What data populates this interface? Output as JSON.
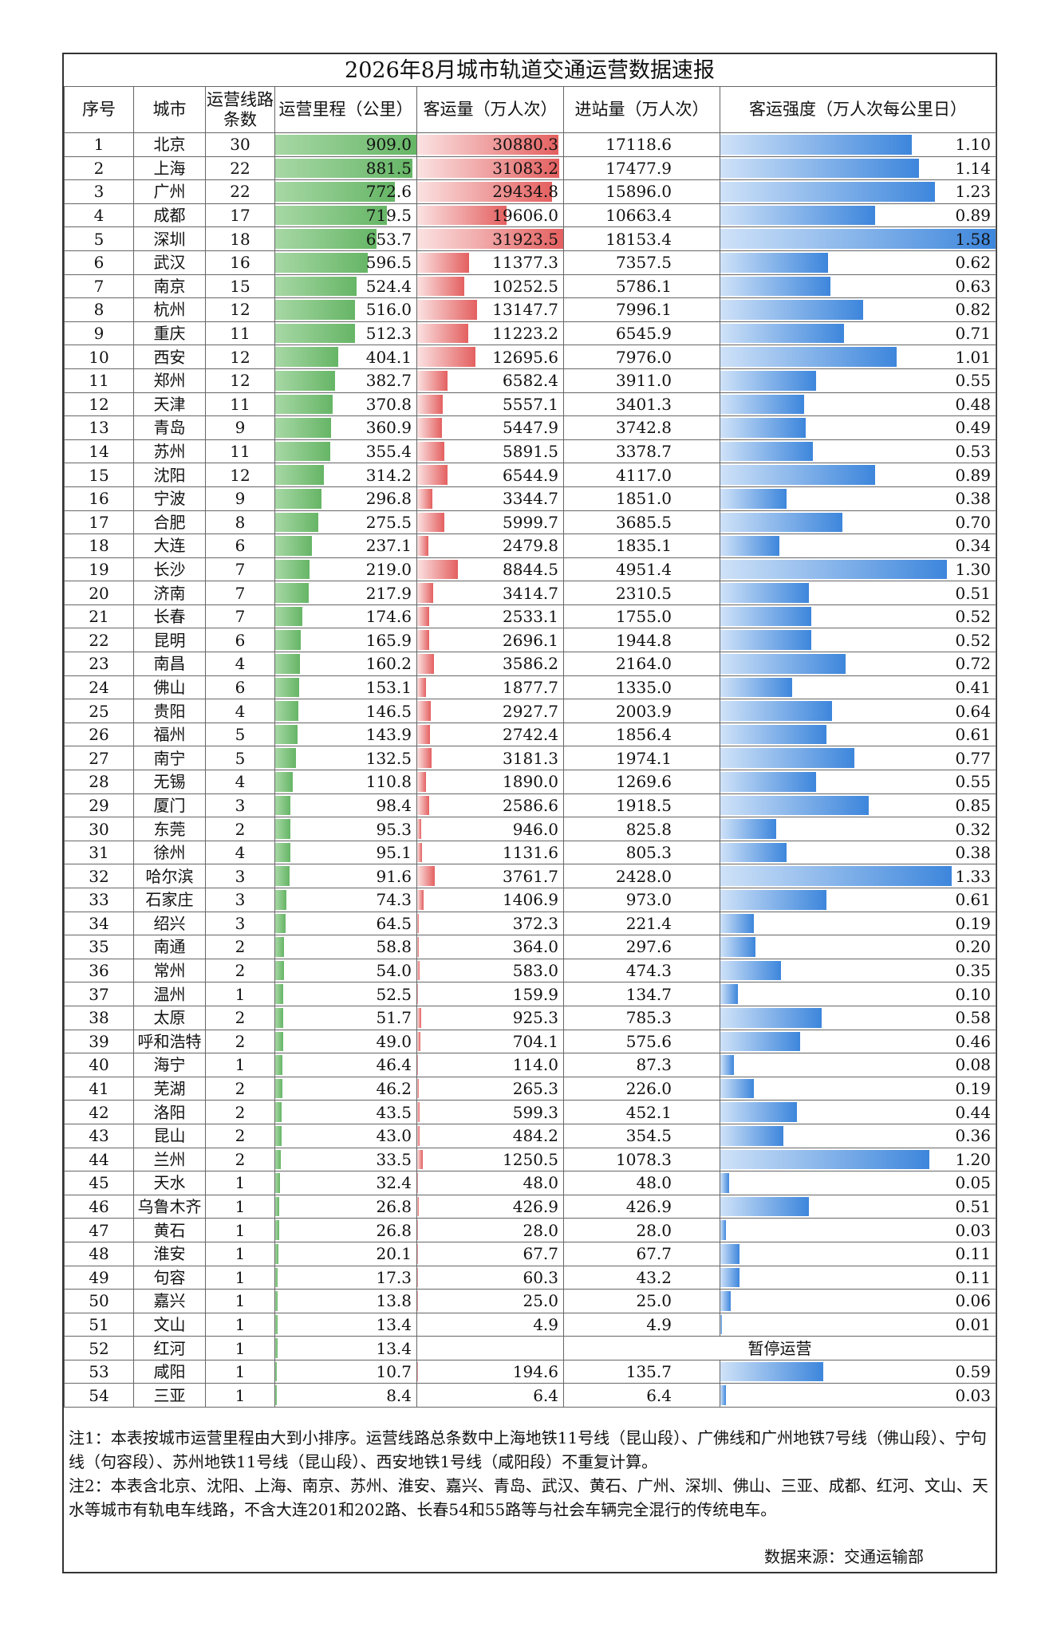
{
  "title": "2026年8月城市轨道交通运营数据速报",
  "headers": [
    "序号",
    "城市",
    "运营线路条数",
    "运营里程（公里）",
    "客运量（万人次）",
    "进站量（万人次）",
    "客运强度（万人次每公里日）"
  ],
  "colors": {
    "mileage_bar": "#66b566",
    "ridership_bar": "#e46060",
    "intensity_bar": "#3d86dc"
  },
  "rows": [
    {
      "no": "1",
      "city": "北京",
      "lines": "30",
      "mileage": "909.0",
      "ridership": "30880.3",
      "entries": "17118.6",
      "intensity": "1.10"
    },
    {
      "no": "2",
      "city": "上海",
      "lines": "22",
      "mileage": "881.5",
      "ridership": "31083.2",
      "entries": "17477.9",
      "intensity": "1.14"
    },
    {
      "no": "3",
      "city": "广州",
      "lines": "22",
      "mileage": "772.6",
      "ridership": "29434.8",
      "entries": "15896.0",
      "intensity": "1.23"
    },
    {
      "no": "4",
      "city": "成都",
      "lines": "17",
      "mileage": "719.5",
      "ridership": "19606.0",
      "entries": "10663.4",
      "intensity": "0.89"
    },
    {
      "no": "5",
      "city": "深圳",
      "lines": "18",
      "mileage": "653.7",
      "ridership": "31923.5",
      "entries": "18153.4",
      "intensity": "1.58"
    },
    {
      "no": "6",
      "city": "武汉",
      "lines": "16",
      "mileage": "596.5",
      "ridership": "11377.3",
      "entries": "7357.5",
      "intensity": "0.62"
    },
    {
      "no": "7",
      "city": "南京",
      "lines": "15",
      "mileage": "524.4",
      "ridership": "10252.5",
      "entries": "5786.1",
      "intensity": "0.63"
    },
    {
      "no": "8",
      "city": "杭州",
      "lines": "12",
      "mileage": "516.0",
      "ridership": "13147.7",
      "entries": "7996.1",
      "intensity": "0.82"
    },
    {
      "no": "9",
      "city": "重庆",
      "lines": "11",
      "mileage": "512.3",
      "ridership": "11223.2",
      "entries": "6545.9",
      "intensity": "0.71"
    },
    {
      "no": "10",
      "city": "西安",
      "lines": "12",
      "mileage": "404.1",
      "ridership": "12695.6",
      "entries": "7976.0",
      "intensity": "1.01"
    },
    {
      "no": "11",
      "city": "郑州",
      "lines": "12",
      "mileage": "382.7",
      "ridership": "6582.4",
      "entries": "3911.0",
      "intensity": "0.55"
    },
    {
      "no": "12",
      "city": "天津",
      "lines": "11",
      "mileage": "370.8",
      "ridership": "5557.1",
      "entries": "3401.3",
      "intensity": "0.48"
    },
    {
      "no": "13",
      "city": "青岛",
      "lines": "9",
      "mileage": "360.9",
      "ridership": "5447.9",
      "entries": "3742.8",
      "intensity": "0.49"
    },
    {
      "no": "14",
      "city": "苏州",
      "lines": "11",
      "mileage": "355.4",
      "ridership": "5891.5",
      "entries": "3378.7",
      "intensity": "0.53"
    },
    {
      "no": "15",
      "city": "沈阳",
      "lines": "12",
      "mileage": "314.2",
      "ridership": "6544.9",
      "entries": "4117.0",
      "intensity": "0.89"
    },
    {
      "no": "16",
      "city": "宁波",
      "lines": "9",
      "mileage": "296.8",
      "ridership": "3344.7",
      "entries": "1851.0",
      "intensity": "0.38"
    },
    {
      "no": "17",
      "city": "合肥",
      "lines": "8",
      "mileage": "275.5",
      "ridership": "5999.7",
      "entries": "3685.5",
      "intensity": "0.70"
    },
    {
      "no": "18",
      "city": "大连",
      "lines": "6",
      "mileage": "237.1",
      "ridership": "2479.8",
      "entries": "1835.1",
      "intensity": "0.34"
    },
    {
      "no": "19",
      "city": "长沙",
      "lines": "7",
      "mileage": "219.0",
      "ridership": "8844.5",
      "entries": "4951.4",
      "intensity": "1.30"
    },
    {
      "no": "20",
      "city": "济南",
      "lines": "7",
      "mileage": "217.9",
      "ridership": "3414.7",
      "entries": "2310.5",
      "intensity": "0.51"
    },
    {
      "no": "21",
      "city": "长春",
      "lines": "7",
      "mileage": "174.6",
      "ridership": "2533.1",
      "entries": "1755.0",
      "intensity": "0.52"
    },
    {
      "no": "22",
      "city": "昆明",
      "lines": "6",
      "mileage": "165.9",
      "ridership": "2696.1",
      "entries": "1944.8",
      "intensity": "0.52"
    },
    {
      "no": "23",
      "city": "南昌",
      "lines": "4",
      "mileage": "160.2",
      "ridership": "3586.2",
      "entries": "2164.0",
      "intensity": "0.72"
    },
    {
      "no": "24",
      "city": "佛山",
      "lines": "6",
      "mileage": "153.1",
      "ridership": "1877.7",
      "entries": "1335.0",
      "intensity": "0.41"
    },
    {
      "no": "25",
      "city": "贵阳",
      "lines": "4",
      "mileage": "146.5",
      "ridership": "2927.7",
      "entries": "2003.9",
      "intensity": "0.64"
    },
    {
      "no": "26",
      "city": "福州",
      "lines": "5",
      "mileage": "143.9",
      "ridership": "2742.4",
      "entries": "1856.4",
      "intensity": "0.61"
    },
    {
      "no": "27",
      "city": "南宁",
      "lines": "5",
      "mileage": "132.5",
      "ridership": "3181.3",
      "entries": "1974.1",
      "intensity": "0.77"
    },
    {
      "no": "28",
      "city": "无锡",
      "lines": "4",
      "mileage": "110.8",
      "ridership": "1890.0",
      "entries": "1269.6",
      "intensity": "0.55"
    },
    {
      "no": "29",
      "city": "厦门",
      "lines": "3",
      "mileage": "98.4",
      "ridership": "2586.6",
      "entries": "1918.5",
      "intensity": "0.85"
    },
    {
      "no": "30",
      "city": "东莞",
      "lines": "2",
      "mileage": "95.3",
      "ridership": "946.0",
      "entries": "825.8",
      "intensity": "0.32"
    },
    {
      "no": "31",
      "city": "徐州",
      "lines": "4",
      "mileage": "95.1",
      "ridership": "1131.6",
      "entries": "805.3",
      "intensity": "0.38"
    },
    {
      "no": "32",
      "city": "哈尔滨",
      "lines": "3",
      "mileage": "91.6",
      "ridership": "3761.7",
      "entries": "2428.0",
      "intensity": "1.33"
    },
    {
      "no": "33",
      "city": "石家庄",
      "lines": "3",
      "mileage": "74.3",
      "ridership": "1406.9",
      "entries": "973.0",
      "intensity": "0.61"
    },
    {
      "no": "34",
      "city": "绍兴",
      "lines": "3",
      "mileage": "64.5",
      "ridership": "372.3",
      "entries": "221.4",
      "intensity": "0.19"
    },
    {
      "no": "35",
      "city": "南通",
      "lines": "2",
      "mileage": "58.8",
      "ridership": "364.0",
      "entries": "297.6",
      "intensity": "0.20"
    },
    {
      "no": "36",
      "city": "常州",
      "lines": "2",
      "mileage": "54.0",
      "ridership": "583.0",
      "entries": "474.3",
      "intensity": "0.35"
    },
    {
      "no": "37",
      "city": "温州",
      "lines": "1",
      "mileage": "52.5",
      "ridership": "159.9",
      "entries": "134.7",
      "intensity": "0.10"
    },
    {
      "no": "38",
      "city": "太原",
      "lines": "2",
      "mileage": "51.7",
      "ridership": "925.3",
      "entries": "785.3",
      "intensity": "0.58"
    },
    {
      "no": "39",
      "city": "呼和浩特",
      "lines": "2",
      "mileage": "49.0",
      "ridership": "704.1",
      "entries": "575.6",
      "intensity": "0.46"
    },
    {
      "no": "40",
      "city": "海宁",
      "lines": "1",
      "mileage": "46.4",
      "ridership": "114.0",
      "entries": "87.3",
      "intensity": "0.08"
    },
    {
      "no": "41",
      "city": "芜湖",
      "lines": "2",
      "mileage": "46.2",
      "ridership": "265.3",
      "entries": "226.0",
      "intensity": "0.19"
    },
    {
      "no": "42",
      "city": "洛阳",
      "lines": "2",
      "mileage": "43.5",
      "ridership": "599.3",
      "entries": "452.1",
      "intensity": "0.44"
    },
    {
      "no": "43",
      "city": "昆山",
      "lines": "2",
      "mileage": "43.0",
      "ridership": "484.2",
      "entries": "354.5",
      "intensity": "0.36"
    },
    {
      "no": "44",
      "city": "兰州",
      "lines": "2",
      "mileage": "33.5",
      "ridership": "1250.5",
      "entries": "1078.3",
      "intensity": "1.20"
    },
    {
      "no": "45",
      "city": "天水",
      "lines": "1",
      "mileage": "32.4",
      "ridership": "48.0",
      "entries": "48.0",
      "intensity": "0.05"
    },
    {
      "no": "46",
      "city": "乌鲁木齐",
      "lines": "1",
      "mileage": "26.8",
      "ridership": "426.9",
      "entries": "426.9",
      "intensity": "0.51"
    },
    {
      "no": "47",
      "city": "黄石",
      "lines": "1",
      "mileage": "26.8",
      "ridership": "28.0",
      "entries": "28.0",
      "intensity": "0.03"
    },
    {
      "no": "48",
      "city": "淮安",
      "lines": "1",
      "mileage": "20.1",
      "ridership": "67.7",
      "entries": "67.7",
      "intensity": "0.11"
    },
    {
      "no": "49",
      "city": "句容",
      "lines": "1",
      "mileage": "17.3",
      "ridership": "60.3",
      "entries": "43.2",
      "intensity": "0.11"
    },
    {
      "no": "50",
      "city": "嘉兴",
      "lines": "1",
      "mileage": "13.8",
      "ridership": "25.0",
      "entries": "25.0",
      "intensity": "0.06"
    },
    {
      "no": "51",
      "city": "文山",
      "lines": "1",
      "mileage": "13.4",
      "ridership": "4.9",
      "entries": "4.9",
      "intensity": "0.01"
    },
    {
      "no": "52",
      "city": "红河",
      "lines": "1",
      "mileage": "13.4",
      "suspended": "暂停运营"
    },
    {
      "no": "53",
      "city": "咸阳",
      "lines": "1",
      "mileage": "10.7",
      "ridership": "194.6",
      "entries": "135.7",
      "intensity": "0.59"
    },
    {
      "no": "54",
      "city": "三亚",
      "lines": "1",
      "mileage": "8.4",
      "ridership": "6.4",
      "entries": "6.4",
      "intensity": "0.03"
    }
  ],
  "notes": [
    "注1：本表按城市运营里程由大到小排序。运营线路总条数中上海地铁11号线（昆山段）、广佛线和广州地铁7号线（佛山段）、宁句线（句容段）、苏州地铁11号线（昆山段）、西安地铁1号线（咸阳段）不重复计算。",
    "注2：本表含北京、沈阳、上海、南京、苏州、淮安、嘉兴、青岛、武汉、黄石、广州、深圳、佛山、三亚、成都、红河、文山、天水等城市有轨电车线路，不含大连201和202路、长春54和55路等与社会车辆完全混行的传统电车。"
  ],
  "source": "数据来源：交通运输部"
}
